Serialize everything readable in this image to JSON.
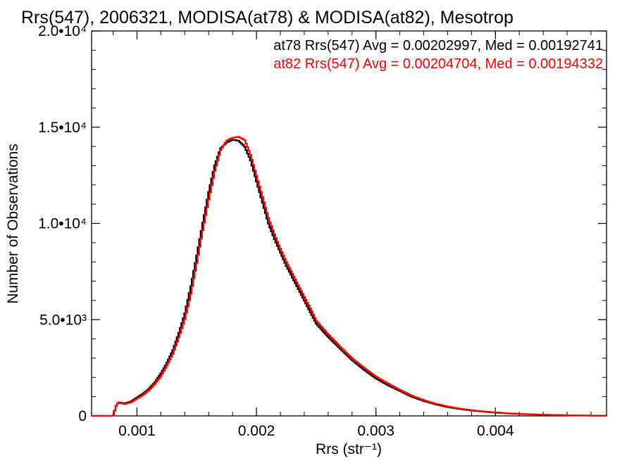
{
  "chart_data": {
    "type": "line",
    "title": "Rrs(547), 2006321, MODISA(at78) & MODISA(at82), Mesotrop",
    "xlabel": "Rrs (str⁻¹)",
    "ylabel": "Number of Observations",
    "xlim": [
      0.00062,
      0.00493
    ],
    "ylim": [
      0,
      20000
    ],
    "x_ticks": [
      {
        "value": 0.001,
        "label": "0.001"
      },
      {
        "value": 0.002,
        "label": "0.002"
      },
      {
        "value": 0.003,
        "label": "0.003"
      },
      {
        "value": 0.004,
        "label": "0.004"
      }
    ],
    "y_ticks": [
      {
        "value": 0,
        "label": "0"
      },
      {
        "value": 5000,
        "label": "5.0•10³"
      },
      {
        "value": 10000,
        "label": "1.0•10⁴"
      },
      {
        "value": 15000,
        "label": "1.5•10⁴"
      },
      {
        "value": 20000,
        "label": "2.0•10⁴"
      }
    ],
    "legend_position": "top-right",
    "series": [
      {
        "name": "at78",
        "legend_text": "at78 Rrs(547) Avg = 0.00202997, Med = 0.00192741",
        "color": "#000000",
        "x": [
          0.00062,
          0.0008,
          0.00083,
          0.00085,
          0.0009,
          0.00095,
          0.001,
          0.00105,
          0.0011,
          0.00115,
          0.0012,
          0.00125,
          0.0013,
          0.00135,
          0.0014,
          0.00145,
          0.0015,
          0.00155,
          0.0016,
          0.00165,
          0.0017,
          0.00175,
          0.0018,
          0.00185,
          0.0019,
          0.00195,
          0.002,
          0.00205,
          0.0021,
          0.00215,
          0.0022,
          0.00225,
          0.0023,
          0.00235,
          0.0024,
          0.00245,
          0.0025,
          0.0026,
          0.0027,
          0.0028,
          0.0029,
          0.003,
          0.0031,
          0.0032,
          0.0033,
          0.0034,
          0.0035,
          0.0036,
          0.0037,
          0.0038,
          0.0039,
          0.004,
          0.0041,
          0.0042,
          0.0043,
          0.0044,
          0.0045,
          0.0046,
          0.0047,
          0.0048,
          0.00493
        ],
        "values": [
          0,
          0,
          600,
          700,
          650,
          750,
          950,
          1150,
          1400,
          1750,
          2200,
          2750,
          3400,
          4300,
          5300,
          6700,
          8300,
          10000,
          11600,
          13000,
          13900,
          14200,
          14350,
          14300,
          14000,
          13300,
          12200,
          11100,
          10000,
          9200,
          8500,
          7800,
          7200,
          6600,
          6000,
          5400,
          4800,
          4100,
          3500,
          2900,
          2400,
          1950,
          1600,
          1300,
          1000,
          780,
          600,
          460,
          360,
          280,
          220,
          170,
          130,
          100,
          80,
          60,
          45,
          35,
          25,
          15,
          10
        ]
      },
      {
        "name": "at82",
        "legend_text": "at82 Rrs(547) Avg = 0.00204704, Med = 0.00194332",
        "color": "#ff0000",
        "x": [
          0.00062,
          0.0008,
          0.00083,
          0.00085,
          0.0009,
          0.00095,
          0.001,
          0.00105,
          0.0011,
          0.00115,
          0.0012,
          0.00125,
          0.0013,
          0.00135,
          0.0014,
          0.00145,
          0.0015,
          0.00155,
          0.0016,
          0.00165,
          0.0017,
          0.00175,
          0.0018,
          0.00185,
          0.0019,
          0.00195,
          0.002,
          0.00205,
          0.0021,
          0.00215,
          0.0022,
          0.00225,
          0.0023,
          0.00235,
          0.0024,
          0.00245,
          0.0025,
          0.0026,
          0.0027,
          0.0028,
          0.0029,
          0.003,
          0.0031,
          0.0032,
          0.0033,
          0.0034,
          0.0035,
          0.0036,
          0.0037,
          0.0038,
          0.0039,
          0.004,
          0.0041,
          0.0042,
          0.0043,
          0.0044,
          0.0045,
          0.0046,
          0.0047,
          0.0048,
          0.00493
        ],
        "values": [
          0,
          0,
          600,
          680,
          620,
          700,
          900,
          1080,
          1320,
          1650,
          2050,
          2600,
          3200,
          4050,
          5000,
          6300,
          7900,
          9600,
          11200,
          12700,
          13800,
          14300,
          14450,
          14500,
          14350,
          13600,
          12500,
          11400,
          10300,
          9450,
          8700,
          8000,
          7400,
          6800,
          6200,
          5600,
          4950,
          4250,
          3600,
          3000,
          2500,
          2050,
          1680,
          1360,
          1050,
          820,
          630,
          490,
          380,
          295,
          230,
          180,
          140,
          105,
          82,
          62,
          47,
          36,
          26,
          16,
          10
        ]
      }
    ]
  }
}
